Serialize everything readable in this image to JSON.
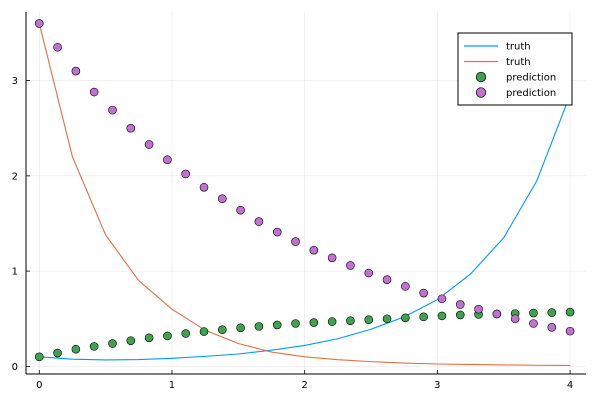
{
  "chart_data": {
    "type": "line",
    "title": "",
    "xlabel": "",
    "ylabel": "",
    "xlim": [
      -0.1,
      4.12
    ],
    "ylim": [
      -0.08,
      3.72
    ],
    "xticks": [
      0,
      1,
      2,
      3,
      4
    ],
    "yticks": [
      0,
      1,
      2,
      3
    ],
    "grid": true,
    "legend_position": "top-right",
    "series": [
      {
        "name": "truth",
        "kind": "line",
        "color": "#009af9",
        "x": [
          0,
          0.25,
          0.5,
          0.75,
          1,
          1.25,
          1.5,
          1.75,
          2,
          2.25,
          2.5,
          2.75,
          3,
          3.25,
          3.5,
          3.75,
          4
        ],
        "y": [
          0.1,
          0.075,
          0.068,
          0.072,
          0.085,
          0.105,
          0.13,
          0.17,
          0.22,
          0.29,
          0.39,
          0.52,
          0.7,
          0.97,
          1.35,
          1.95,
          2.85
        ]
      },
      {
        "name": "truth",
        "kind": "line",
        "color": "#e26f46",
        "x": [
          0,
          0.25,
          0.5,
          0.75,
          1,
          1.25,
          1.5,
          1.75,
          2,
          2.25,
          2.5,
          2.75,
          3,
          3.25,
          3.5,
          3.75,
          4
        ],
        "y": [
          3.6,
          2.2,
          1.38,
          0.9,
          0.6,
          0.38,
          0.24,
          0.15,
          0.1,
          0.07,
          0.05,
          0.035,
          0.025,
          0.02,
          0.015,
          0.012,
          0.01
        ]
      },
      {
        "name": "prediction",
        "kind": "scatter",
        "color": "#3da44d",
        "x": [
          0,
          0.1379,
          0.2759,
          0.4138,
          0.5517,
          0.6897,
          0.8276,
          0.9655,
          1.1034,
          1.2414,
          1.3793,
          1.5172,
          1.6552,
          1.7931,
          1.931,
          2.069,
          2.2069,
          2.3448,
          2.4828,
          2.6207,
          2.7586,
          2.8966,
          3.0345,
          3.1724,
          3.3103,
          3.4483,
          3.5862,
          3.7241,
          3.8621,
          4.0
        ],
        "y": [
          0.1,
          0.14,
          0.18,
          0.21,
          0.24,
          0.27,
          0.3,
          0.32,
          0.345,
          0.365,
          0.385,
          0.405,
          0.42,
          0.435,
          0.45,
          0.46,
          0.47,
          0.48,
          0.49,
          0.5,
          0.51,
          0.52,
          0.53,
          0.54,
          0.545,
          0.55,
          0.555,
          0.56,
          0.565,
          0.57
        ]
      },
      {
        "name": "prediction",
        "kind": "scatter",
        "color": "#c271d2",
        "x": [
          0,
          0.1379,
          0.2759,
          0.4138,
          0.5517,
          0.6897,
          0.8276,
          0.9655,
          1.1034,
          1.2414,
          1.3793,
          1.5172,
          1.6552,
          1.7931,
          1.931,
          2.069,
          2.2069,
          2.3448,
          2.4828,
          2.6207,
          2.7586,
          2.8966,
          3.0345,
          3.1724,
          3.3103,
          3.4483,
          3.5862,
          3.7241,
          3.8621,
          4.0
        ],
        "y": [
          3.6,
          3.35,
          3.1,
          2.88,
          2.69,
          2.5,
          2.33,
          2.17,
          2.02,
          1.88,
          1.76,
          1.64,
          1.52,
          1.41,
          1.31,
          1.22,
          1.14,
          1.06,
          0.98,
          0.91,
          0.84,
          0.77,
          0.71,
          0.65,
          0.6,
          0.55,
          0.5,
          0.45,
          0.41,
          0.37
        ]
      }
    ]
  }
}
